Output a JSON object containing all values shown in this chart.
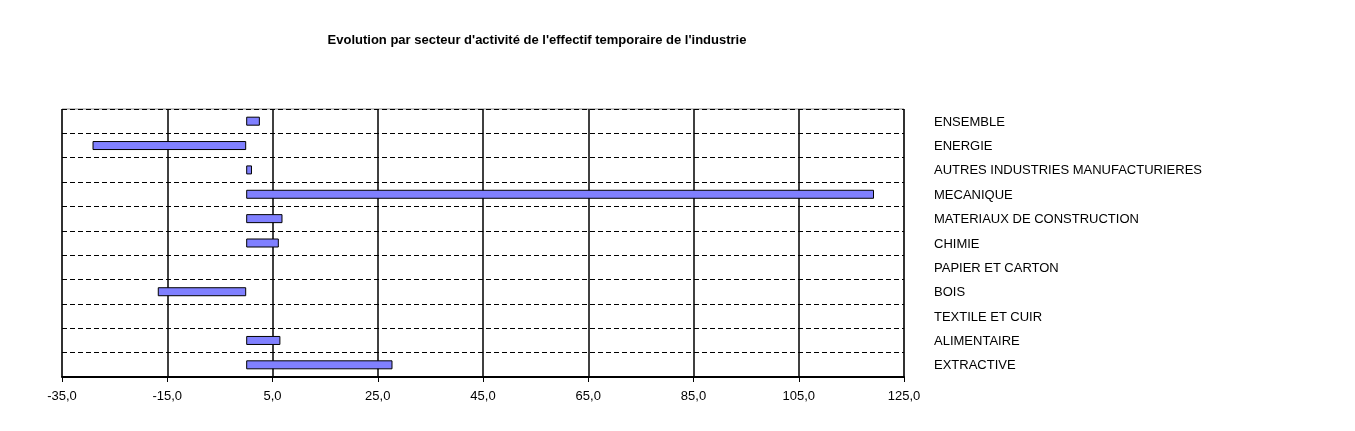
{
  "chart_data": {
    "type": "bar",
    "orientation": "horizontal",
    "title": "Evolution par secteur d'activité de l'effectif temporaire de l'industrie",
    "categories": [
      "ENSEMBLE",
      "ENERGIE",
      "AUTRES INDUSTRIES MANUFACTURIERES",
      "MECANIQUE",
      "MATERIAUX DE CONSTRUCTION",
      "CHIMIE",
      "PAPIER ET CARTON",
      "BOIS",
      "TEXTILE ET CUIR",
      "ALIMENTAIRE",
      "EXTRACTIVE"
    ],
    "values": [
      2.6,
      -29.2,
      1.1,
      119.3,
      6.9,
      6.2,
      null,
      -16.8,
      null,
      6.5,
      27.8
    ],
    "color": "#8080ff",
    "xlim": [
      -35,
      125
    ],
    "xticks": [
      {
        "value": -35,
        "label": "-35,0"
      },
      {
        "value": -15,
        "label": "-15,0"
      },
      {
        "value": 5,
        "label": "5,0"
      },
      {
        "value": 25,
        "label": "25,0"
      },
      {
        "value": 45,
        "label": "45,0"
      },
      {
        "value": 65,
        "label": "65,0"
      },
      {
        "value": 85,
        "label": "85,0"
      },
      {
        "value": 105,
        "label": "105,0"
      },
      {
        "value": 125,
        "label": "125,0"
      }
    ],
    "grid": true
  }
}
